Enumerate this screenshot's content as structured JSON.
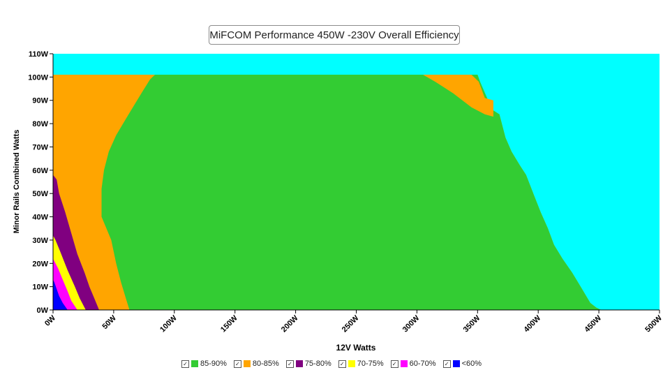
{
  "chart_data": {
    "type": "area",
    "title": "MiFCOM Performance 450W -230V Overall Efficiency",
    "xlabel": "12V Watts",
    "ylabel": "Minor Rails Combined Watts",
    "xlim": [
      0,
      500
    ],
    "ylim": [
      0,
      110
    ],
    "x_ticks": [
      "0W",
      "50W",
      "100W",
      "150W",
      "200W",
      "250W",
      "300W",
      "350W",
      "400W",
      "450W",
      "500W"
    ],
    "y_ticks": [
      "0W",
      "10W",
      "20W",
      "30W",
      "40W",
      "50W",
      "60W",
      "70W",
      "80W",
      "90W",
      "100W",
      "110W"
    ],
    "background_color": "#00ffff",
    "legend_position": "bottom",
    "series": [
      {
        "name": "85-90%",
        "color": "#33cc33"
      },
      {
        "name": "80-85%",
        "color": "#ffa500"
      },
      {
        "name": "75-80%",
        "color": "#800080"
      },
      {
        "name": "70-75%",
        "color": "#ffff00"
      },
      {
        "name": "60-70%",
        "color": "#ff00ff"
      },
      {
        "name": "<60%",
        "color": "#0000ff"
      }
    ],
    "regions": {
      "max_load_boundary": [
        [
          0,
          101
        ],
        [
          350,
          101
        ],
        [
          352,
          98
        ],
        [
          357,
          92
        ],
        [
          362,
          86
        ],
        [
          368,
          84
        ],
        [
          373,
          74
        ],
        [
          378,
          68
        ],
        [
          385,
          62
        ],
        [
          390,
          58
        ],
        [
          396,
          50
        ],
        [
          402,
          42
        ],
        [
          408,
          35
        ],
        [
          413,
          28
        ],
        [
          420,
          22
        ],
        [
          428,
          16
        ],
        [
          435,
          10
        ],
        [
          443,
          3
        ],
        [
          448,
          1
        ],
        [
          452,
          0
        ]
      ],
      "orange_85_upper_right": [
        [
          303,
          101
        ],
        [
          345,
          101
        ],
        [
          351,
          98
        ],
        [
          356,
          91
        ],
        [
          363,
          90
        ],
        [
          363,
          83
        ],
        [
          356,
          84
        ],
        [
          345,
          87
        ],
        [
          330,
          93
        ],
        [
          315,
          98
        ],
        [
          305,
          101
        ]
      ],
      "green_left_edge": [
        [
          63,
          0
        ],
        [
          60,
          5
        ],
        [
          56,
          12
        ],
        [
          52,
          20
        ],
        [
          48,
          30
        ],
        [
          40,
          40
        ],
        [
          40,
          52
        ],
        [
          42,
          60
        ],
        [
          46,
          68
        ],
        [
          52,
          75
        ],
        [
          60,
          82
        ],
        [
          67,
          88
        ],
        [
          74,
          94
        ],
        [
          80,
          99
        ],
        [
          84,
          101
        ]
      ],
      "purple_right_edge": [
        [
          38,
          0
        ],
        [
          34,
          5
        ],
        [
          30,
          10
        ],
        [
          26,
          16
        ],
        [
          20,
          24
        ],
        [
          15,
          33
        ],
        [
          10,
          42
        ],
        [
          5,
          50
        ],
        [
          3,
          56
        ],
        [
          0,
          58
        ]
      ],
      "yellow_right_edge": [
        [
          27,
          0
        ],
        [
          22,
          5
        ],
        [
          18,
          10
        ],
        [
          12,
          17
        ],
        [
          6,
          25
        ],
        [
          2,
          30
        ],
        [
          0,
          32
        ]
      ],
      "magenta_right_edge": [
        [
          20,
          0
        ],
        [
          15,
          4
        ],
        [
          12,
          8
        ],
        [
          8,
          13
        ],
        [
          4,
          18
        ],
        [
          1,
          21
        ],
        [
          0,
          22
        ]
      ],
      "blue_right_edge": [
        [
          12,
          0
        ],
        [
          8,
          3
        ],
        [
          5,
          6
        ],
        [
          3,
          9
        ],
        [
          1,
          12
        ],
        [
          0,
          13
        ]
      ]
    }
  }
}
